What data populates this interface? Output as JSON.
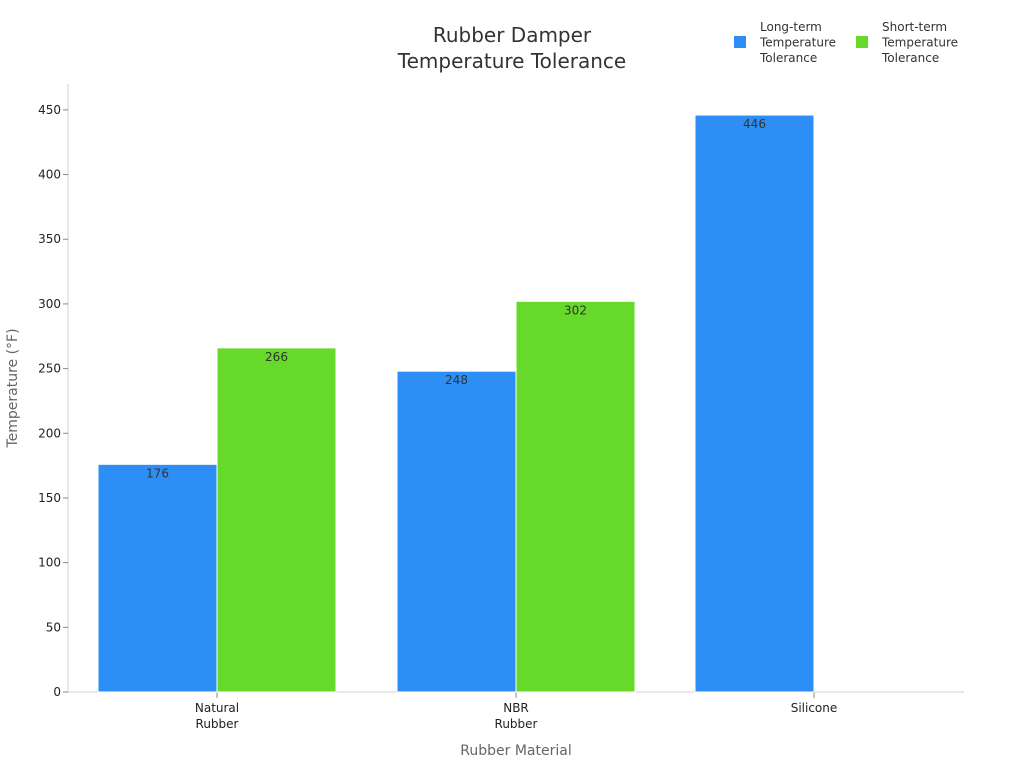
{
  "chart_data": {
    "type": "bar",
    "title": "Rubber Damper\nTemperature Tolerance",
    "title_lines": [
      "Rubber Damper",
      "Temperature Tolerance"
    ],
    "xlabel": "Rubber Material",
    "ylabel": "Temperature (°F)",
    "categories": [
      "Natural\nRubber",
      "NBR\nRubber",
      "Silicone"
    ],
    "category_lines": [
      [
        "Natural",
        "Rubber"
      ],
      [
        "NBR",
        "Rubber"
      ],
      [
        "Silicone"
      ]
    ],
    "series": [
      {
        "name": "Long-term Temperature Tolerance",
        "name_lines": [
          "Long-term",
          "Temperature",
          "Tolerance"
        ],
        "color": "#2d8ff6",
        "values": [
          176,
          248,
          446
        ]
      },
      {
        "name": "Short-term Temperature Tolerance",
        "name_lines": [
          "Short-term",
          "Temperature",
          "Tolerance"
        ],
        "color": "#66d92a",
        "values": [
          266,
          302,
          null
        ]
      }
    ],
    "ylim": [
      0,
      470
    ],
    "yticks": [
      0,
      50,
      100,
      150,
      200,
      250,
      300,
      350,
      400,
      450
    ],
    "grid": false,
    "legend_position": "top-right"
  }
}
